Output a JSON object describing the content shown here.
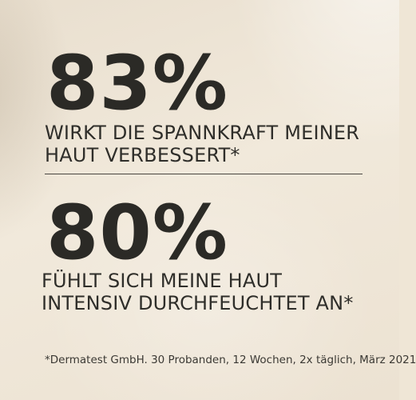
{
  "stats": [
    {
      "value": "83%",
      "caption_line1": "WIRKT DIE SPANNKRAFT MEINER",
      "caption_line2": "HAUT VERBESSERT*"
    },
    {
      "value": "80%",
      "caption_line1": "FÜHLT SICH MEINE HAUT",
      "caption_line2": "INTENSIV DURCHFEUCHTET AN*"
    }
  ],
  "footnote": "*Dermatest GmbH. 30 Probanden, 12 Wochen, 2x täglich, März 2021",
  "colors": {
    "background": "#efe6d6",
    "text": "#2b2a26"
  }
}
